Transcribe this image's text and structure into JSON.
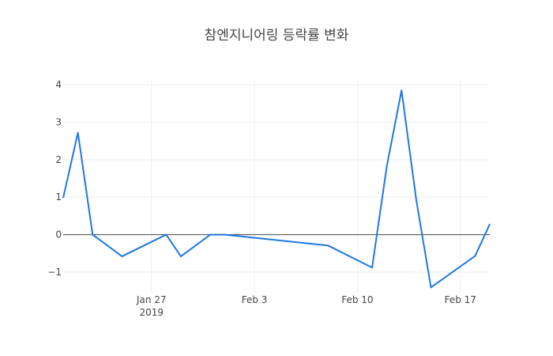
{
  "chart_data": {
    "type": "line",
    "title": "참엔지니어링 등락률 변화",
    "xlabel": "",
    "ylabel": "",
    "x_tick_labels": [
      "Jan 27",
      "Feb 3",
      "Feb 10",
      "Feb 17"
    ],
    "x_tick_dates": [
      "2019-01-27",
      "2019-02-03",
      "2019-02-10",
      "2019-02-17"
    ],
    "x_tick_year_label": "2019",
    "xlim": [
      "2019-01-21",
      "2019-02-18"
    ],
    "ylim": [
      -1.55,
      4.15
    ],
    "y_ticks": [
      -1,
      0,
      1,
      2,
      3,
      4
    ],
    "y_tick_labels": [
      "−1",
      "0",
      "1",
      "2",
      "3",
      "4"
    ],
    "grid": true,
    "zero_line": true,
    "legend": "none",
    "series": [
      {
        "color": "#1f77e4",
        "points": [
          {
            "x": "2019-01-21",
            "y": 0.98
          },
          {
            "x": "2019-01-22",
            "y": 2.72
          },
          {
            "x": "2019-01-23",
            "y": 0.0
          },
          {
            "x": "2019-01-25",
            "y": -0.58
          },
          {
            "x": "2019-01-28",
            "y": 0.0
          },
          {
            "x": "2019-01-29",
            "y": -0.58
          },
          {
            "x": "2019-01-31",
            "y": 0.0
          },
          {
            "x": "2019-02-01",
            "y": 0.0
          },
          {
            "x": "2019-02-08",
            "y": -0.29
          },
          {
            "x": "2019-02-11",
            "y": -0.88
          },
          {
            "x": "2019-02-12",
            "y": 1.83
          },
          {
            "x": "2019-02-13",
            "y": 3.85
          },
          {
            "x": "2019-02-14",
            "y": 0.93
          },
          {
            "x": "2019-02-15",
            "y": -1.41
          },
          {
            "x": "2019-02-18",
            "y": -0.57
          },
          {
            "x": "2019-02-19",
            "y": 0.28
          }
        ]
      }
    ]
  }
}
